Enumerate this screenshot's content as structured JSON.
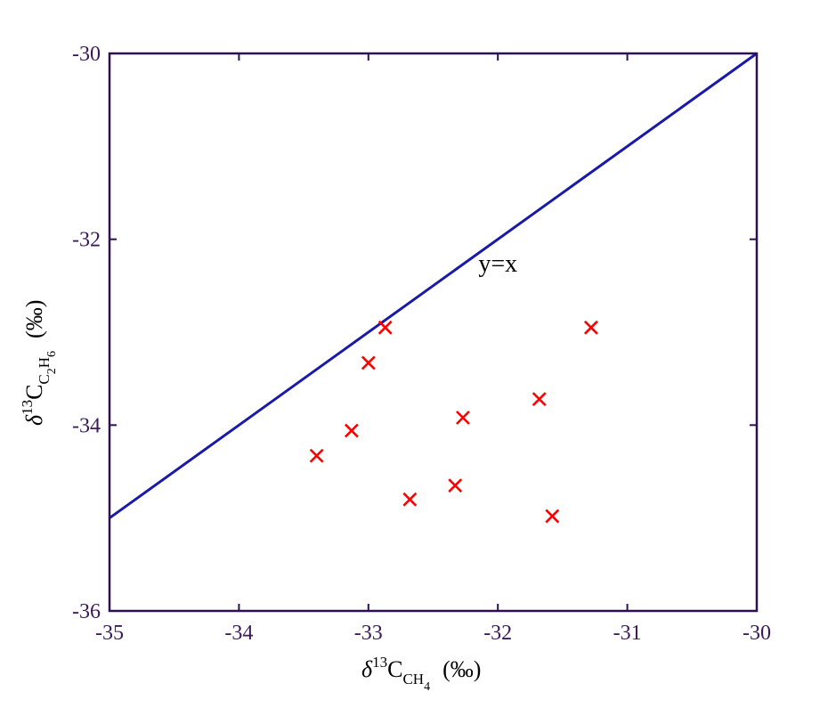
{
  "chart_data": {
    "type": "scatter",
    "xlim": [
      -35,
      -30
    ],
    "ylim": [
      -36,
      -30
    ],
    "x_ticks": [
      -35,
      -34,
      -33,
      -32,
      -31,
      -30
    ],
    "y_ticks": [
      -36,
      -34,
      -32,
      -30
    ],
    "xlabel": {
      "prefix": "δ",
      "sup": "13",
      "main": "C",
      "sub_main": "CH",
      "sub_sub": "4",
      "unit": "(‰)"
    },
    "ylabel": {
      "prefix": "δ",
      "sup": "13",
      "main": "C",
      "sub_part1": "C",
      "sub_part1_sub": "2",
      "sub_part2": "H",
      "sub_part2_sub": "6",
      "unit": "(‰)"
    },
    "reference_line": {
      "label": "y=x",
      "label_pos": [
        -32.15,
        -32.35
      ],
      "points": [
        [
          -35,
          -35
        ],
        [
          -30,
          -30
        ]
      ],
      "color": "#1a1aaa"
    },
    "series": [
      {
        "marker": "x",
        "color": "#ff0000",
        "points": [
          [
            -33.4,
            -34.33
          ],
          [
            -33.13,
            -34.06
          ],
          [
            -33.0,
            -33.33
          ],
          [
            -32.87,
            -32.95
          ],
          [
            -32.68,
            -34.8
          ],
          [
            -32.33,
            -34.65
          ],
          [
            -32.27,
            -33.92
          ],
          [
            -31.68,
            -33.72
          ],
          [
            -31.58,
            -34.98
          ],
          [
            -31.28,
            -32.95
          ]
        ]
      }
    ],
    "frame_color": "#2d1050"
  }
}
